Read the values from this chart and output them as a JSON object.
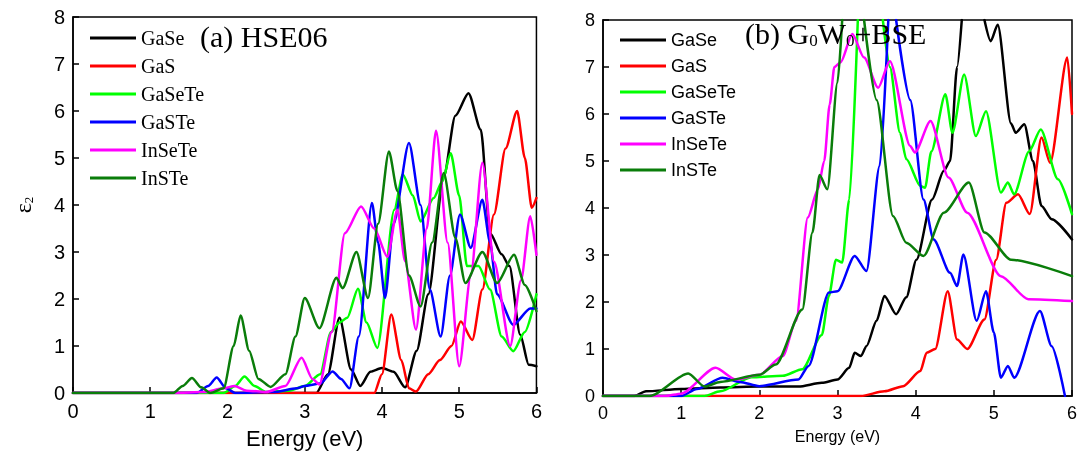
{
  "chart_data": [
    {
      "type": "line",
      "title": "(a) HSE06",
      "xlabel": "Energy (eV)",
      "ylabel": "ε$_{2}$",
      "xlim": [
        0,
        6
      ],
      "xticks": [
        0,
        1,
        2,
        3,
        4,
        5,
        6
      ],
      "ylim": [
        0,
        8
      ],
      "yticks": [
        0,
        1,
        2,
        3,
        4,
        5,
        6,
        7,
        8
      ],
      "legend": "top left",
      "marker": "none",
      "line_style": "solid",
      "series": [
        {
          "name": "GaSe",
          "color": "#000000",
          "x": [
            0,
            3.15,
            3.3,
            3.45,
            3.6,
            3.72,
            3.85,
            4.0,
            4.15,
            4.3,
            4.45,
            4.6,
            4.8,
            4.95,
            5.12,
            5.28,
            5.4,
            5.55,
            5.65,
            5.79,
            5.9,
            6
          ],
          "values": [
            0,
            0,
            0.4,
            1.6,
            0.5,
            0.15,
            0.45,
            0.53,
            0.45,
            0.12,
            0.9,
            2.1,
            4.6,
            5.9,
            6.38,
            5.6,
            3.4,
            2.95,
            2.7,
            1.24,
            0.6,
            0.57
          ]
        },
        {
          "name": "GaS",
          "color": "#ff0000",
          "x": [
            0,
            3.9,
            4.0,
            4.12,
            4.25,
            4.35,
            4.44,
            4.6,
            4.75,
            4.9,
            5.02,
            5.17,
            5.3,
            5.45,
            5.6,
            5.75,
            5.85,
            5.94,
            6
          ],
          "values": [
            0,
            0,
            0.4,
            1.67,
            0.7,
            0.1,
            0.03,
            0.4,
            0.7,
            1.0,
            1.52,
            1.13,
            2.2,
            3.8,
            5.2,
            6.0,
            5.0,
            3.94,
            4.15
          ]
        },
        {
          "name": "GaSeTe",
          "color": "#00ff00",
          "x": [
            0,
            1.95,
            2.1,
            2.22,
            2.35,
            2.5,
            2.8,
            3.0,
            3.2,
            3.34,
            3.45,
            3.55,
            3.69,
            3.8,
            3.94,
            4.16,
            4.27,
            4.4,
            4.5,
            4.67,
            4.78,
            4.89,
            5.0,
            5.1,
            5.25,
            5.4,
            5.55,
            5.7,
            5.85,
            6
          ],
          "values": [
            0,
            0,
            0.15,
            0.35,
            0.15,
            0.02,
            0.05,
            0.15,
            0.4,
            1.3,
            1.5,
            1.6,
            2.22,
            1.5,
            0.96,
            3.9,
            4.65,
            4.2,
            3.65,
            4.15,
            4.5,
            5.1,
            4.2,
            2.7,
            2.7,
            2.2,
            1.2,
            0.89,
            1.3,
            2.1
          ]
        },
        {
          "name": "GaSTe",
          "color": "#0000ff",
          "x": [
            0,
            1.6,
            1.75,
            1.86,
            1.98,
            2.1,
            2.6,
            2.9,
            3.0,
            3.2,
            3.36,
            3.47,
            3.58,
            3.7,
            3.87,
            3.95,
            4.04,
            4.15,
            4.35,
            4.5,
            4.62,
            4.76,
            4.88,
            5.01,
            5.15,
            5.3,
            5.4,
            5.49,
            5.7,
            5.92,
            6
          ],
          "values": [
            0,
            0,
            0.15,
            0.33,
            0.1,
            0,
            0.02,
            0.1,
            0.15,
            0.2,
            0.46,
            0.3,
            0.1,
            1.2,
            4.04,
            3.2,
            2.02,
            3.6,
            5.32,
            4.0,
            2.2,
            1.2,
            2.5,
            3.8,
            3.09,
            4.11,
            3.2,
            2.1,
            1.45,
            1.8,
            1.8
          ]
        },
        {
          "name": "InSeTe",
          "color": "#ff00ff",
          "x": [
            0,
            1.3,
            1.7,
            1.95,
            2.09,
            2.25,
            2.5,
            2.75,
            2.96,
            3.1,
            3.19,
            3.35,
            3.52,
            3.73,
            3.9,
            4.07,
            4.2,
            4.3,
            4.44,
            4.58,
            4.7,
            4.85,
            5.0,
            5.15,
            5.3,
            5.45,
            5.66,
            5.8,
            5.92,
            6
          ],
          "values": [
            0,
            0,
            0.02,
            0.1,
            0.15,
            0.05,
            0.02,
            0.15,
            0.75,
            0.3,
            0.18,
            1.3,
            3.4,
            3.97,
            3.5,
            2.9,
            3.9,
            2.8,
            1.35,
            3.5,
            5.58,
            3.2,
            0.57,
            2.5,
            4.9,
            2.8,
            1.0,
            2.4,
            3.76,
            2.94
          ]
        },
        {
          "name": "InSTe",
          "color": "#0a7d0a",
          "x": [
            0,
            1.3,
            1.42,
            1.54,
            1.66,
            1.78,
            1.95,
            2.08,
            2.17,
            2.28,
            2.4,
            2.56,
            2.75,
            2.88,
            3.0,
            3.19,
            3.41,
            3.49,
            3.67,
            3.82,
            3.95,
            4.09,
            4.2,
            4.35,
            4.5,
            4.65,
            4.8,
            4.95,
            5.08,
            5.3,
            5.49,
            5.71,
            5.85,
            6
          ],
          "values": [
            0,
            0,
            0.15,
            0.32,
            0.12,
            0,
            0.1,
            1.0,
            1.65,
            0.9,
            0.3,
            0.13,
            0.4,
            1.2,
            2.02,
            1.38,
            2.45,
            2.23,
            3.0,
            2.02,
            3.6,
            5.14,
            4.3,
            2.5,
            1.84,
            3.2,
            4.68,
            3.3,
            2.34,
            3.0,
            2.34,
            2.94,
            2.3,
            1.74
          ]
        }
      ]
    },
    {
      "type": "line",
      "title": "(b) G$_{0}$W$_{0}$+BSE",
      "xlabel": "Energy (eV)",
      "xlim": [
        0,
        6
      ],
      "xticks": [
        0,
        1,
        2,
        3,
        4,
        5,
        6
      ],
      "ylim": [
        0,
        8
      ],
      "yticks": [
        0,
        1,
        2,
        3,
        4,
        5,
        6,
        7,
        8
      ],
      "legend": "top left",
      "marker": "none",
      "line_style": "solid",
      "series": [
        {
          "name": "GaSe",
          "color": "#000000",
          "x": [
            0,
            0.4,
            0.55,
            1,
            1.5,
            2,
            2.5,
            2.8,
            3,
            3.15,
            3.22,
            3.3,
            3.37,
            3.5,
            3.6,
            3.75,
            3.88,
            4.01,
            4.21,
            4.36,
            4.44,
            4.53,
            4.59,
            4.7,
            4.88,
            4.96,
            5.05,
            5.22,
            5.28,
            5.39,
            5.5,
            5.61,
            5.74,
            6
          ],
          "values": [
            0,
            0,
            0.1,
            0.15,
            0.18,
            0.2,
            0.2,
            0.28,
            0.35,
            0.6,
            0.92,
            0.85,
            1.06,
            1.6,
            2.13,
            1.74,
            2.1,
            2.9,
            4.18,
            4.79,
            5.0,
            7.0,
            8,
            null,
            8,
            7.55,
            7.9,
            5.8,
            5.6,
            5.78,
            5.0,
            4.04,
            3.76,
            3.33
          ]
        },
        {
          "name": "GaS",
          "color": "#ff0000",
          "x": [
            0,
            3.3,
            3.6,
            3.84,
            4.06,
            4.14,
            4.25,
            4.41,
            4.53,
            4.66,
            4.88,
            5.03,
            5.16,
            5.31,
            5.46,
            5.61,
            5.72,
            5.94,
            6
          ],
          "values": [
            0,
            0,
            0.1,
            0.21,
            0.53,
            0.92,
            1.0,
            2.23,
            1.2,
            1.0,
            1.63,
            2.9,
            4.11,
            4.29,
            3.87,
            5.5,
            4.96,
            7.2,
            6.0
          ]
        },
        {
          "name": "GaSeTe",
          "color": "#00ff00",
          "x": [
            0,
            1.3,
            1.5,
            1.9,
            2.3,
            2.55,
            2.8,
            2.89,
            2.98,
            3.06,
            3.15,
            3.26,
            3.4,
            3.58,
            3.67,
            3.8,
            3.88,
            4.06,
            4.12,
            4.2,
            4.38,
            4.47,
            4.62,
            4.77,
            4.9,
            5.09,
            5.18,
            5.26,
            5.45,
            5.6,
            5.82,
            6
          ],
          "values": [
            0,
            0,
            0.1,
            0.4,
            0.43,
            0.57,
            1.3,
            2.13,
            2.9,
            2.84,
            4.18,
            8,
            null,
            8,
            7.0,
            5.6,
            5.04,
            4.47,
            4.43,
            5.2,
            6.42,
            5.6,
            6.84,
            5.53,
            6.06,
            4.33,
            4.54,
            4.29,
            5.2,
            5.67,
            4.61,
            3.87
          ]
        },
        {
          "name": "GaSTe",
          "color": "#0000ff",
          "x": [
            0,
            1.0,
            1.2,
            1.53,
            1.75,
            2.0,
            2.5,
            2.63,
            2.89,
            3.0,
            3.22,
            3.37,
            3.54,
            3.65,
            3.7,
            3.75,
            3.93,
            4.1,
            4.23,
            4.44,
            4.53,
            4.61,
            4.78,
            4.9,
            5.0,
            5.09,
            5.18,
            5.26,
            5.59,
            5.74,
            5.91
          ],
          "values": [
            0,
            0,
            0.15,
            0.39,
            0.3,
            0.21,
            0.35,
            0.64,
            2.2,
            2.23,
            2.98,
            2.66,
            4.9,
            8,
            null,
            8,
            6.3,
            4.18,
            3.33,
            2.62,
            2.34,
            3.01,
            1.6,
            2.23,
            1.35,
            0.39,
            0.64,
            0.39,
            1.81,
            1.06,
            0
          ]
        },
        {
          "name": "InSeTe",
          "color": "#ff00ff",
          "x": [
            0,
            0.8,
            1.0,
            1.44,
            1.7,
            2.0,
            2.3,
            2.47,
            2.62,
            2.75,
            2.83,
            2.9,
            2.96,
            3.04,
            3.19,
            3.34,
            3.52,
            3.67,
            3.93,
            3.99,
            4.19,
            4.42,
            4.66,
            5.09,
            5.44,
            6
          ],
          "values": [
            0,
            0,
            0.05,
            0.6,
            0.35,
            0.45,
            0.85,
            1.6,
            3.8,
            4.4,
            5.0,
            6.2,
            7.0,
            7.1,
            7.7,
            7.2,
            6.56,
            7.13,
            5.32,
            5.18,
            5.85,
            4.65,
            3.9,
            2.55,
            2.06,
            2.02
          ]
        },
        {
          "name": "InSTe",
          "color": "#0a7d0a",
          "x": [
            0,
            0.6,
            1.09,
            1.3,
            1.5,
            2.0,
            2.21,
            2.55,
            2.68,
            2.77,
            2.87,
            3.0,
            3.06,
            3.2,
            3.34,
            3.5,
            3.71,
            3.88,
            4.1,
            4.36,
            4.68,
            4.88,
            5.22,
            6
          ],
          "values": [
            0,
            0,
            0.48,
            0.2,
            0.3,
            0.45,
            0.67,
            1.84,
            3.48,
            4.7,
            4.4,
            6.67,
            8,
            null,
            8,
            6.3,
            3.83,
            3.26,
            2.98,
            3.9,
            4.54,
            3.48,
            2.9,
            2.55
          ]
        }
      ]
    }
  ]
}
